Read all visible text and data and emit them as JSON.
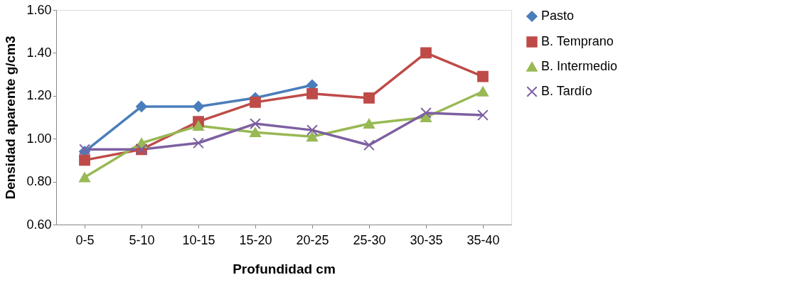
{
  "chart_data": {
    "type": "line",
    "xlabel": "Profundidad cm",
    "ylabel": "Densidad aparente g/cm3",
    "categories": [
      "0-5",
      "5-10",
      "10-15",
      "15-20",
      "20-25",
      "25-30",
      "30-35",
      "35-40"
    ],
    "series": [
      {
        "name": "Pasto",
        "color": "#4a7ebb",
        "marker": "diamond",
        "values": [
          0.94,
          1.15,
          1.15,
          1.19,
          1.25,
          null,
          null,
          null
        ]
      },
      {
        "name": "B. Temprano",
        "color": "#be4b48",
        "marker": "square",
        "values": [
          0.9,
          0.95,
          1.08,
          1.17,
          1.21,
          1.19,
          1.4,
          1.29
        ]
      },
      {
        "name": "B. Intermedio",
        "color": "#98b954",
        "marker": "triangle",
        "values": [
          0.82,
          0.98,
          1.06,
          1.03,
          1.01,
          1.07,
          1.1,
          1.22
        ]
      },
      {
        "name": "B. Tardío",
        "color": "#7d60a0",
        "marker": "cross",
        "values": [
          0.95,
          0.95,
          0.98,
          1.07,
          1.04,
          0.97,
          1.12,
          1.11
        ]
      }
    ],
    "ylim": [
      0.6,
      1.6
    ],
    "yticks": [
      {
        "value": 0.6,
        "label": "0.60"
      },
      {
        "value": 0.8,
        "label": "0.80"
      },
      {
        "value": 1.0,
        "label": "1.00"
      },
      {
        "value": 1.2,
        "label": "1.20"
      },
      {
        "value": 1.4,
        "label": "1.40"
      },
      {
        "value": 1.6,
        "label": "1.60"
      }
    ],
    "grid": false,
    "legend": "right",
    "line_style": "solid"
  }
}
